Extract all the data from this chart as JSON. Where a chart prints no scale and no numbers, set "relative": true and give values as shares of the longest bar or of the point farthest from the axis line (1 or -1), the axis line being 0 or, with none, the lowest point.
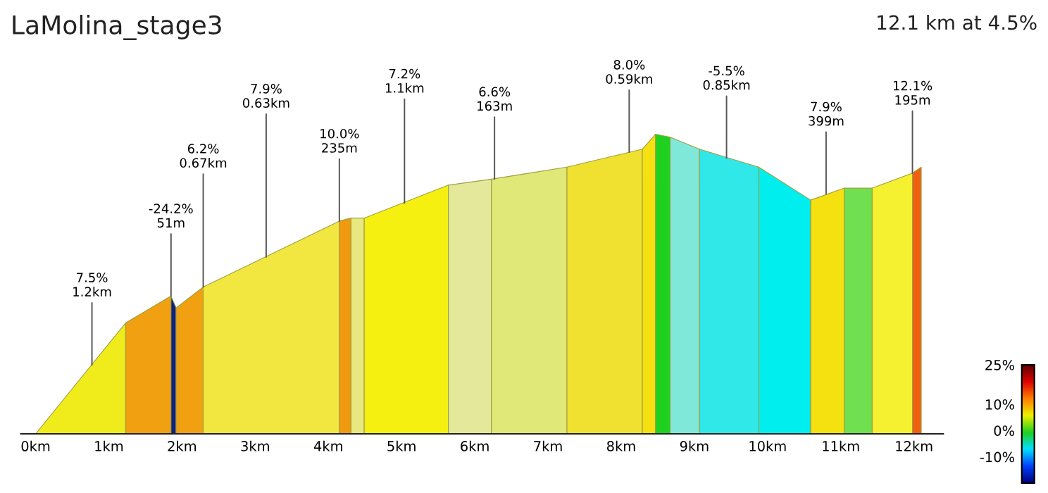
{
  "chart_data": {
    "type": "area",
    "title": "LaMolina_stage3",
    "subtitle": "12.1 km at 4.5%",
    "relative": true,
    "series": [
      {
        "x": [
          0,
          1.23
        ],
        "values": [
          0,
          0.37
        ],
        "color": "#f0ec1c"
      },
      {
        "x": [
          1.23,
          1.85
        ],
        "values": [
          0.37,
          0.46
        ],
        "color": "#f0a010"
      },
      {
        "x": [
          1.85,
          1.92
        ],
        "values": [
          0.46,
          0.42
        ],
        "color": "#102080"
      },
      {
        "x": [
          1.92,
          2.29
        ],
        "values": [
          0.42,
          0.49
        ],
        "color": "#f0a010"
      },
      {
        "x": [
          2.29,
          4.15
        ],
        "values": [
          0.49,
          0.71
        ],
        "color": "#f2e640"
      },
      {
        "x": [
          4.15,
          4.31
        ],
        "values": [
          0.71,
          0.72
        ],
        "color": "#f09a10"
      },
      {
        "x": [
          4.31,
          4.49
        ],
        "values": [
          0.72,
          0.72
        ],
        "color": "#e8e880"
      },
      {
        "x": [
          4.49,
          5.64
        ],
        "values": [
          0.72,
          0.83
        ],
        "color": "#f5f010"
      },
      {
        "x": [
          5.64,
          6.23
        ],
        "values": [
          0.83,
          0.85
        ],
        "color": "#e4e89a"
      },
      {
        "x": [
          6.23,
          7.26
        ],
        "values": [
          0.85,
          0.89
        ],
        "color": "#e0e878"
      },
      {
        "x": [
          7.26,
          8.29
        ],
        "values": [
          0.89,
          0.95
        ],
        "color": "#f0e030"
      },
      {
        "x": [
          8.29,
          8.47
        ],
        "values": [
          0.95,
          1.0
        ],
        "color": "#f5e010"
      },
      {
        "x": [
          8.47,
          8.67
        ],
        "values": [
          1.0,
          0.99
        ],
        "color": "#20d020"
      },
      {
        "x": [
          8.67,
          9.07
        ],
        "values": [
          0.99,
          0.95
        ],
        "color": "#80e8d8"
      },
      {
        "x": [
          9.07,
          9.88
        ],
        "values": [
          0.95,
          0.89
        ],
        "color": "#30e8e8"
      },
      {
        "x": [
          9.88,
          10.59
        ],
        "values": [
          0.89,
          0.78
        ],
        "color": "#00eeee"
      },
      {
        "x": [
          10.59,
          11.05
        ],
        "values": [
          0.78,
          0.82
        ],
        "color": "#f5e010"
      },
      {
        "x": [
          11.05,
          11.43
        ],
        "values": [
          0.82,
          0.82
        ],
        "color": "#70e050"
      },
      {
        "x": [
          11.43,
          11.98
        ],
        "values": [
          0.82,
          0.87
        ],
        "color": "#f5f030"
      },
      {
        "x": [
          11.98,
          12.1
        ],
        "values": [
          0.87,
          0.89
        ],
        "color": "#f06010"
      }
    ],
    "xlim": [
      -0.2,
      12.4
    ],
    "xticks": [
      {
        "value": 0,
        "label": "0km"
      },
      {
        "value": 1,
        "label": "1km"
      },
      {
        "value": 2,
        "label": "2km"
      },
      {
        "value": 3,
        "label": "3km"
      },
      {
        "value": 4,
        "label": "4km"
      },
      {
        "value": 5,
        "label": "5km"
      },
      {
        "value": 6,
        "label": "6km"
      },
      {
        "value": 7,
        "label": "7km"
      },
      {
        "value": 8,
        "label": "8km"
      },
      {
        "value": 9,
        "label": "9km"
      },
      {
        "value": 10,
        "label": "10km"
      },
      {
        "value": 11,
        "label": "11km"
      },
      {
        "value": 12,
        "label": "12km"
      }
    ],
    "clim": [
      -20,
      25
    ],
    "cticks": [
      {
        "value": 25,
        "label": "25%"
      },
      {
        "value": 10,
        "label": "10%"
      },
      {
        "value": 0,
        "label": "0%"
      },
      {
        "value": -10,
        "label": "-10%"
      }
    ],
    "annotations": [
      {
        "text": "7.5%\n1.2km",
        "x": 0.77,
        "y": 0.23
      },
      {
        "text": "-24.2%\n51m",
        "x": 1.85,
        "y": 0.46
      },
      {
        "text": "6.2%\n0.67km",
        "x": 2.29,
        "y": 0.49
      },
      {
        "text": "7.9%\n0.63km",
        "x": 3.15,
        "y": 0.59
      },
      {
        "text": "10.0%\n235m",
        "x": 4.15,
        "y": 0.71
      },
      {
        "text": "7.2%\n1.1km",
        "x": 5.04,
        "y": 0.77
      },
      {
        "text": "6.6%\n163m",
        "x": 6.27,
        "y": 0.85
      },
      {
        "text": "8.0%\n0.59km",
        "x": 8.11,
        "y": 0.94
      },
      {
        "text": "-5.5%\n0.85km",
        "x": 9.44,
        "y": 0.92
      },
      {
        "text": "7.9%\n399m",
        "x": 10.8,
        "y": 0.8
      },
      {
        "text": "12.1%\n195m",
        "x": 11.98,
        "y": 0.87
      }
    ]
  }
}
